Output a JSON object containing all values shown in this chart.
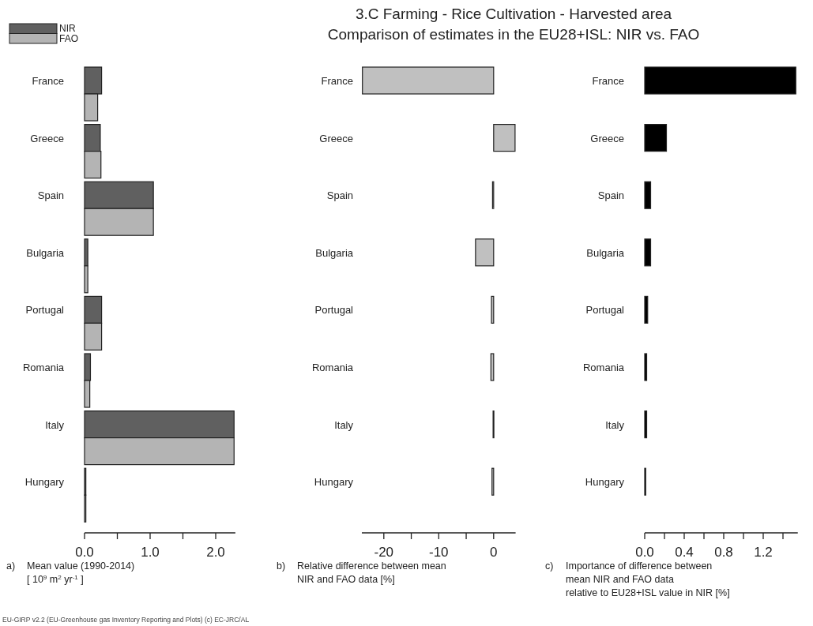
{
  "chart_data": [
    {
      "type": "bar",
      "orientation": "horizontal",
      "categories": [
        "France",
        "Greece",
        "Spain",
        "Bulgaria",
        "Portugal",
        "Romania",
        "Italy",
        "Hungary"
      ],
      "series": [
        {
          "name": "NIR",
          "color": "#606060",
          "values": [
            0.26,
            0.24,
            1.05,
            0.05,
            0.26,
            0.09,
            2.28,
            0.02
          ]
        },
        {
          "name": "FAO",
          "color": "#b4b4b4",
          "values": [
            0.2,
            0.25,
            1.05,
            0.05,
            0.26,
            0.08,
            2.28,
            0.02
          ]
        }
      ],
      "xlim": [
        0,
        2.3
      ],
      "xticks": [
        {
          "value": 0,
          "label": "0.0"
        },
        {
          "value": 0.5,
          "label": null
        },
        {
          "value": 1,
          "label": "1.0"
        },
        {
          "value": 1.5,
          "label": null
        },
        {
          "value": 2,
          "label": "2.0"
        }
      ],
      "xlabel": "a)\tMean value (1990-2014)\n[ 10$^{9}$ m$^{2}$ yr$^{-1}$ ]",
      "legend": "top left",
      "grid": false,
      "annotations": [
        "EU-GIRP v2.2 (EU-Greenhouse gas Inventory Reporting and Plots) (c) EC-JRC/AL"
      ]
    },
    {
      "type": "bar",
      "orientation": "horizontal",
      "categories": [
        "France",
        "Greece",
        "Spain",
        "Bulgaria",
        "Portugal",
        "Romania",
        "Italy",
        "Hungary"
      ],
      "series": [
        {
          "color": "#c0c0c0",
          "values": [
            -23.9,
            3.9,
            -0.2,
            -3.3,
            -0.4,
            -0.5,
            -0.1,
            -0.3
          ]
        }
      ],
      "xlim": [
        -24,
        4
      ],
      "xticks": [
        -20,
        {
          "value": -15,
          "label": null
        },
        -10,
        {
          "value": -5,
          "label": null
        },
        0
      ],
      "title": "3.C Farming - Rice Cultivation - Harvested area",
      "subtitle": "Comparison of estimates in the EU28+ISL: NIR vs. FAO",
      "xlabel": "b)\tRelative difference between mean\nNIR and FAO data [%]",
      "grid": false
    },
    {
      "type": "bar",
      "orientation": "horizontal",
      "categories": [
        "France",
        "Greece",
        "Spain",
        "Bulgaria",
        "Portugal",
        "Romania",
        "Italy",
        "Hungary"
      ],
      "series": [
        {
          "color": "#000000",
          "values": [
            1.53,
            0.22,
            0.06,
            0.06,
            0.03,
            0.02,
            0.02,
            0.01
          ]
        }
      ],
      "xlim": [
        0,
        1.55
      ],
      "xticks": [
        {
          "value": 0,
          "label": "0.0"
        },
        {
          "value": 0.2,
          "label": null
        },
        {
          "value": 0.4,
          "label": "0.4"
        },
        {
          "value": 0.6,
          "label": null
        },
        {
          "value": 0.8,
          "label": "0.8"
        },
        {
          "value": 1,
          "label": null
        },
        {
          "value": 1.2,
          "label": "1.2"
        },
        {
          "value": 1.4,
          "label": null
        }
      ],
      "xlabel": "c)\tImportance of difference between\nmean NIR and FAO data\nrelative to EU28+ISL value in NIR [%]",
      "grid": false
    }
  ]
}
